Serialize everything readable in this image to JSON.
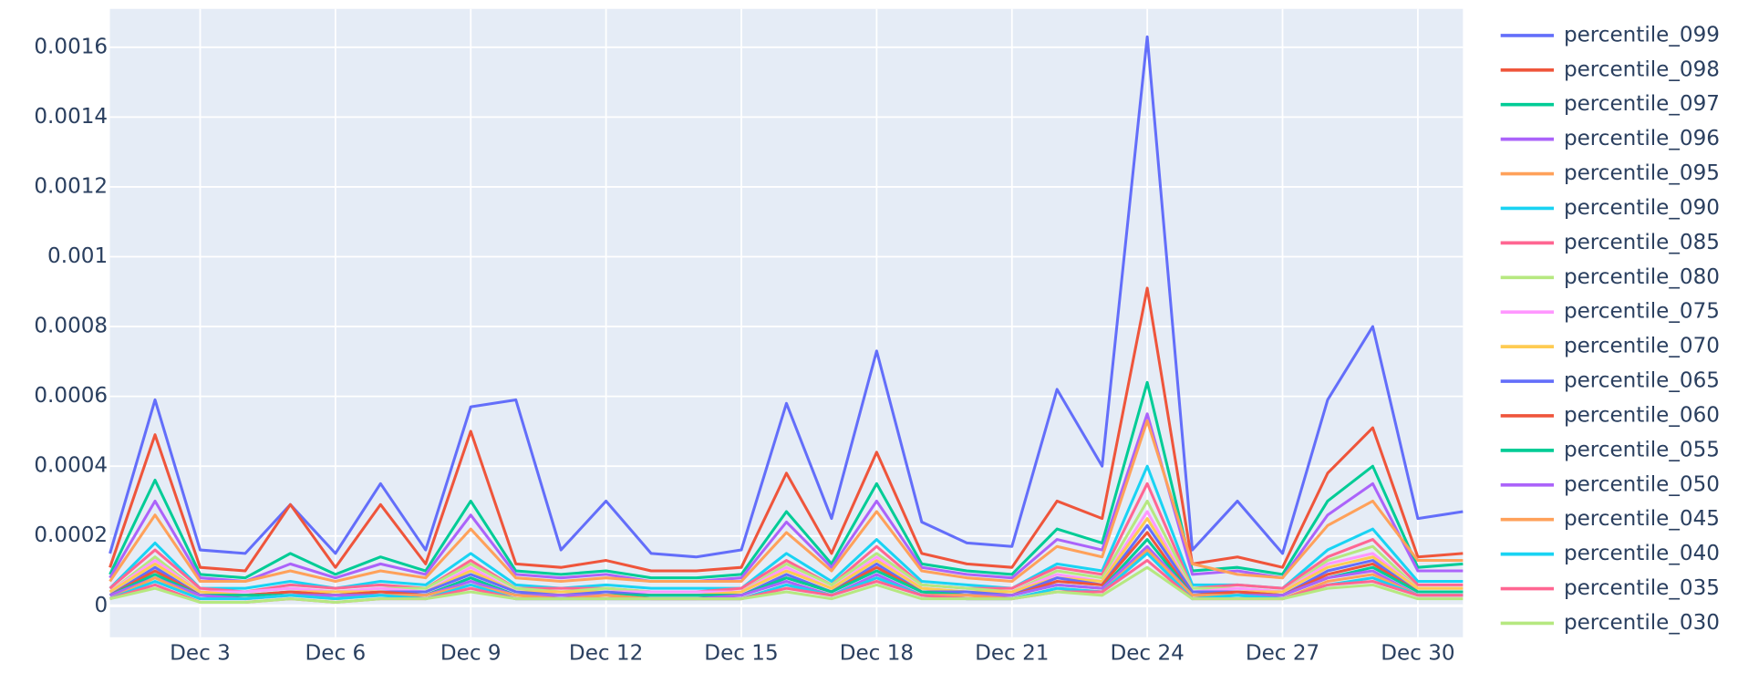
{
  "chart_data": {
    "type": "line",
    "x": [
      "Dec 1",
      "Dec 2",
      "Dec 3",
      "Dec 4",
      "Dec 5",
      "Dec 6",
      "Dec 7",
      "Dec 8",
      "Dec 9",
      "Dec 10",
      "Dec 11",
      "Dec 12",
      "Dec 13",
      "Dec 14",
      "Dec 15",
      "Dec 16",
      "Dec 17",
      "Dec 18",
      "Dec 19",
      "Dec 20",
      "Dec 21",
      "Dec 22",
      "Dec 23",
      "Dec 24",
      "Dec 25",
      "Dec 26",
      "Dec 27",
      "Dec 28",
      "Dec 29",
      "Dec 30",
      "Dec 31"
    ],
    "xlim": [
      "Dec 1",
      "Dec 31"
    ],
    "xticks": [
      "Dec 3",
      "Dec 6",
      "Dec 9",
      "Dec 12",
      "Dec 15",
      "Dec 18",
      "Dec 21",
      "Dec 24",
      "Dec 27",
      "Dec 30"
    ],
    "ylim": [
      -9e-05,
      0.00171
    ],
    "yticks": [
      0,
      0.0002,
      0.0004,
      0.0006,
      0.0008,
      0.001,
      0.0012,
      0.0014,
      0.0016
    ],
    "grid": true,
    "legend": "right",
    "series": [
      {
        "name": "percentile_099",
        "color": "#636efa",
        "values": [
          0.00015,
          0.00059,
          0.00016,
          0.00015,
          0.00029,
          0.00015,
          0.00035,
          0.00016,
          0.00057,
          0.00059,
          0.00016,
          0.0003,
          0.00015,
          0.00014,
          0.00016,
          0.00058,
          0.00025,
          0.00073,
          0.00024,
          0.00018,
          0.00017,
          0.00062,
          0.0004,
          0.00163,
          0.00016,
          0.0003,
          0.00015,
          0.00059,
          0.0008,
          0.00025,
          0.00027
        ]
      },
      {
        "name": "percentile_098",
        "color": "#EF553B",
        "values": [
          0.00011,
          0.00049,
          0.00011,
          0.0001,
          0.00029,
          0.00011,
          0.00029,
          0.00012,
          0.0005,
          0.00012,
          0.00011,
          0.00013,
          0.0001,
          0.0001,
          0.00011,
          0.00038,
          0.00015,
          0.00044,
          0.00015,
          0.00012,
          0.00011,
          0.0003,
          0.00025,
          0.00091,
          0.00012,
          0.00014,
          0.00011,
          0.00038,
          0.00051,
          0.00014,
          0.00015
        ]
      },
      {
        "name": "percentile_097",
        "color": "#00cc96",
        "values": [
          9e-05,
          0.00036,
          9e-05,
          8e-05,
          0.00015,
          9e-05,
          0.00014,
          0.0001,
          0.0003,
          0.0001,
          9e-05,
          0.0001,
          8e-05,
          8e-05,
          9e-05,
          0.00027,
          0.00012,
          0.00035,
          0.00012,
          0.0001,
          9e-05,
          0.00022,
          0.00018,
          0.00064,
          0.0001,
          0.00011,
          9e-05,
          0.0003,
          0.0004,
          0.00011,
          0.00012
        ]
      },
      {
        "name": "percentile_096",
        "color": "#ab63fa",
        "values": [
          8e-05,
          0.0003,
          8e-05,
          7e-05,
          0.00012,
          8e-05,
          0.00012,
          9e-05,
          0.00026,
          9e-05,
          8e-05,
          9e-05,
          7e-05,
          7e-05,
          8e-05,
          0.00024,
          0.00011,
          0.0003,
          0.00011,
          9e-05,
          8e-05,
          0.00019,
          0.00016,
          0.00055,
          9e-05,
          0.0001,
          8e-05,
          0.00026,
          0.00035,
          0.0001,
          0.0001
        ]
      },
      {
        "name": "percentile_095",
        "color": "#FFA15A",
        "values": [
          7e-05,
          0.00026,
          7e-05,
          7e-05,
          0.0001,
          7e-05,
          0.0001,
          8e-05,
          0.00022,
          8e-05,
          7e-05,
          8e-05,
          7e-05,
          7e-05,
          7e-05,
          0.00021,
          0.0001,
          0.00027,
          0.0001,
          8e-05,
          7e-05,
          0.00017,
          0.00014,
          0.00053,
          0.00012,
          9e-05,
          8e-05,
          0.00023,
          0.0003,
          0.00013,
          0.00013
        ]
      },
      {
        "name": "percentile_090",
        "color": "#19d3f3",
        "values": [
          5e-05,
          0.00018,
          5e-05,
          5e-05,
          7e-05,
          5e-05,
          7e-05,
          6e-05,
          0.00015,
          6e-05,
          5e-05,
          6e-05,
          5e-05,
          5e-05,
          5e-05,
          0.00015,
          7e-05,
          0.00019,
          7e-05,
          6e-05,
          5e-05,
          0.00012,
          0.0001,
          0.0004,
          6e-05,
          6e-05,
          5e-05,
          0.00016,
          0.00022,
          7e-05,
          7e-05
        ]
      },
      {
        "name": "percentile_085",
        "color": "#FF6692",
        "values": [
          5e-05,
          0.00016,
          5e-05,
          4e-05,
          6e-05,
          5e-05,
          6e-05,
          5e-05,
          0.00013,
          5e-05,
          5e-05,
          5e-05,
          4e-05,
          4e-05,
          5e-05,
          0.00013,
          6e-05,
          0.00017,
          6e-05,
          5e-05,
          5e-05,
          0.00011,
          9e-05,
          0.00035,
          5e-05,
          6e-05,
          5e-05,
          0.00014,
          0.00019,
          6e-05,
          6e-05
        ]
      },
      {
        "name": "percentile_080",
        "color": "#B6E880",
        "values": [
          4e-05,
          0.00014,
          4e-05,
          4e-05,
          5e-05,
          4e-05,
          5e-05,
          5e-05,
          0.00012,
          5e-05,
          4e-05,
          5e-05,
          4e-05,
          4e-05,
          4e-05,
          0.00012,
          6e-05,
          0.00015,
          6e-05,
          5e-05,
          4e-05,
          0.0001,
          8e-05,
          0.0003,
          5e-05,
          5e-05,
          4e-05,
          0.00013,
          0.00017,
          5e-05,
          5e-05
        ]
      },
      {
        "name": "percentile_075",
        "color": "#FF97FF",
        "values": [
          4e-05,
          0.00013,
          4e-05,
          4e-05,
          5e-05,
          4e-05,
          5e-05,
          4e-05,
          0.00011,
          4e-05,
          4e-05,
          4e-05,
          4e-05,
          4e-05,
          4e-05,
          0.00011,
          5e-05,
          0.00014,
          5e-05,
          4e-05,
          4e-05,
          9e-05,
          7e-05,
          0.00027,
          4e-05,
          5e-05,
          4e-05,
          0.00012,
          0.00015,
          5e-05,
          5e-05
        ]
      },
      {
        "name": "percentile_070",
        "color": "#FECB52",
        "values": [
          4e-05,
          0.00012,
          4e-05,
          3e-05,
          4e-05,
          4e-05,
          4e-05,
          4e-05,
          0.0001,
          4e-05,
          4e-05,
          4e-05,
          3e-05,
          3e-05,
          4e-05,
          0.0001,
          5e-05,
          0.00013,
          5e-05,
          4e-05,
          4e-05,
          8e-05,
          7e-05,
          0.00025,
          4e-05,
          4e-05,
          4e-05,
          0.00011,
          0.00014,
          5e-05,
          5e-05
        ]
      },
      {
        "name": "percentile_065",
        "color": "#636efa",
        "values": [
          3e-05,
          0.00011,
          3e-05,
          3e-05,
          4e-05,
          3e-05,
          4e-05,
          4e-05,
          9e-05,
          4e-05,
          3e-05,
          4e-05,
          3e-05,
          3e-05,
          3e-05,
          9e-05,
          4e-05,
          0.00012,
          4e-05,
          4e-05,
          3e-05,
          8e-05,
          6e-05,
          0.00023,
          4e-05,
          4e-05,
          3e-05,
          0.0001,
          0.00013,
          4e-05,
          4e-05
        ]
      },
      {
        "name": "percentile_060",
        "color": "#EF553B",
        "values": [
          3e-05,
          0.0001,
          3e-05,
          3e-05,
          4e-05,
          3e-05,
          4e-05,
          3e-05,
          8e-05,
          3e-05,
          3e-05,
          3e-05,
          3e-05,
          3e-05,
          3e-05,
          8e-05,
          4e-05,
          0.00011,
          4e-05,
          3e-05,
          3e-05,
          7e-05,
          6e-05,
          0.00021,
          3e-05,
          4e-05,
          3e-05,
          9e-05,
          0.00012,
          4e-05,
          4e-05
        ]
      },
      {
        "name": "percentile_055",
        "color": "#00cc96",
        "values": [
          3e-05,
          9e-05,
          3e-05,
          3e-05,
          3e-05,
          3e-05,
          3e-05,
          3e-05,
          8e-05,
          3e-05,
          3e-05,
          3e-05,
          3e-05,
          3e-05,
          3e-05,
          8e-05,
          4e-05,
          0.0001,
          4e-05,
          3e-05,
          3e-05,
          6e-05,
          5e-05,
          0.00019,
          3e-05,
          3e-05,
          3e-05,
          8e-05,
          0.00011,
          4e-05,
          4e-05
        ]
      },
      {
        "name": "percentile_050",
        "color": "#ab63fa",
        "values": [
          3e-05,
          8e-05,
          3e-05,
          2e-05,
          3e-05,
          3e-05,
          3e-05,
          3e-05,
          7e-05,
          3e-05,
          3e-05,
          3e-05,
          2e-05,
          2e-05,
          3e-05,
          7e-05,
          3e-05,
          9e-05,
          3e-05,
          3e-05,
          3e-05,
          6e-05,
          5e-05,
          0.00017,
          3e-05,
          3e-05,
          3e-05,
          8e-05,
          0.0001,
          3e-05,
          3e-05
        ]
      },
      {
        "name": "percentile_045",
        "color": "#FFA15A",
        "values": [
          2e-05,
          8e-05,
          2e-05,
          2e-05,
          3e-05,
          2e-05,
          3e-05,
          3e-05,
          6e-05,
          3e-05,
          2e-05,
          3e-05,
          2e-05,
          2e-05,
          2e-05,
          6e-05,
          3e-05,
          8e-05,
          3e-05,
          3e-05,
          2e-05,
          5e-05,
          4e-05,
          0.00016,
          3e-05,
          3e-05,
          2e-05,
          7e-05,
          9e-05,
          3e-05,
          3e-05
        ]
      },
      {
        "name": "percentile_040",
        "color": "#19d3f3",
        "values": [
          2e-05,
          7e-05,
          2e-05,
          2e-05,
          3e-05,
          2e-05,
          3e-05,
          2e-05,
          6e-05,
          2e-05,
          2e-05,
          2e-05,
          2e-05,
          2e-05,
          2e-05,
          6e-05,
          3e-05,
          8e-05,
          3e-05,
          2e-05,
          2e-05,
          5e-05,
          4e-05,
          0.00015,
          2e-05,
          3e-05,
          2e-05,
          6e-05,
          8e-05,
          3e-05,
          3e-05
        ]
      },
      {
        "name": "percentile_035",
        "color": "#FF6692",
        "values": [
          2e-05,
          6e-05,
          1e-05,
          1e-05,
          2e-05,
          1e-05,
          2e-05,
          2e-05,
          5e-05,
          2e-05,
          2e-05,
          2e-05,
          2e-05,
          2e-05,
          2e-05,
          5e-05,
          3e-05,
          7e-05,
          3e-05,
          2e-05,
          2e-05,
          4e-05,
          4e-05,
          0.00013,
          2e-05,
          2e-05,
          2e-05,
          6e-05,
          7e-05,
          3e-05,
          3e-05
        ]
      },
      {
        "name": "percentile_030",
        "color": "#B6E880",
        "values": [
          2e-05,
          5e-05,
          1e-05,
          1e-05,
          2e-05,
          1e-05,
          2e-05,
          2e-05,
          4e-05,
          2e-05,
          2e-05,
          2e-05,
          2e-05,
          2e-05,
          2e-05,
          4e-05,
          2e-05,
          6e-05,
          2e-05,
          2e-05,
          2e-05,
          4e-05,
          3e-05,
          0.00011,
          2e-05,
          2e-05,
          2e-05,
          5e-05,
          6e-05,
          2e-05,
          2e-05
        ]
      }
    ]
  }
}
